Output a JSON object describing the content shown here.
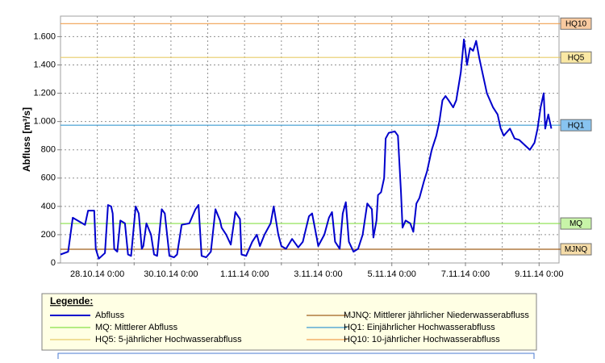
{
  "chart_data": {
    "type": "line",
    "y_label": "Abfluss [m³/s]",
    "legend_title": "Legende:",
    "xlim": [
      "2014-10-27T00:00",
      "2014-11-09T13:00"
    ],
    "xticks": [
      {
        "value": "2014-10-28T00:00",
        "label": "28.10.14 0:00"
      },
      {
        "value": "2014-10-30T00:00",
        "label": "30.10.14 0:00"
      },
      {
        "value": "2014-11-01T00:00",
        "label": "1.11.14 0:00"
      },
      {
        "value": "2014-11-03T00:00",
        "label": "3.11.14 0:00"
      },
      {
        "value": "2014-11-05T00:00",
        "label": "5.11.14 0:00"
      },
      {
        "value": "2014-11-07T00:00",
        "label": "7.11.14 0:00"
      },
      {
        "value": "2014-11-09T00:00",
        "label": "9.11.14 0:00"
      }
    ],
    "x_minor_ticks": [
      "2014-10-29T00:00",
      "2014-10-31T00:00",
      "2014-11-02T00:00",
      "2014-11-04T00:00",
      "2014-11-06T00:00",
      "2014-11-08T00:00"
    ],
    "ylim": [
      0,
      1745
    ],
    "yticks": [
      0,
      200,
      400,
      600,
      800,
      {
        "value": 1000,
        "label": "1.000"
      },
      {
        "value": 1200,
        "label": "1.200"
      },
      {
        "value": 1400,
        "label": "1.400"
      },
      {
        "value": 1600,
        "label": "1.600"
      }
    ],
    "grid": true,
    "series": [
      {
        "name": "Abfluss",
        "color": "#0000cc",
        "x": [
          "2014-10-27T00:00",
          "2014-10-27T05:00",
          "2014-10-27T08:00",
          "2014-10-27T16:00",
          "2014-10-27T18:00",
          "2014-10-27T22:00",
          "2014-10-27T23:00",
          "2014-10-28T01:00",
          "2014-10-28T05:00",
          "2014-10-28T07:00",
          "2014-10-28T09:00",
          "2014-10-28T10:00",
          "2014-10-28T11:00",
          "2014-10-28T13:00",
          "2014-10-28T15:00",
          "2014-10-28T18:00",
          "2014-10-28T20:00",
          "2014-10-28T22:00",
          "2014-10-29T01:00",
          "2014-10-29T03:00",
          "2014-10-29T05:00",
          "2014-10-29T06:00",
          "2014-10-29T08:00",
          "2014-10-29T11:00",
          "2014-10-29T13:00",
          "2014-10-29T15:00",
          "2014-10-29T18:00",
          "2014-10-29T20:00",
          "2014-10-29T23:00",
          "2014-10-30T02:00",
          "2014-10-30T04:00",
          "2014-10-30T07:00",
          "2014-10-30T12:00",
          "2014-10-30T16:00",
          "2014-10-30T18:00",
          "2014-10-30T20:00",
          "2014-10-30T23:00",
          "2014-10-31T02:00",
          "2014-10-31T05:00",
          "2014-10-31T08:00",
          "2014-10-31T09:00",
          "2014-10-31T12:00",
          "2014-10-31T15:00",
          "2014-10-31T18:00",
          "2014-10-31T21:00",
          "2014-10-31T22:00",
          "2014-11-01T01:00",
          "2014-11-01T05:00",
          "2014-11-01T08:00",
          "2014-11-01T10:00",
          "2014-11-01T13:00",
          "2014-11-01T17:00",
          "2014-11-01T19:00",
          "2014-11-01T22:00",
          "2014-11-02T00:00",
          "2014-11-02T03:00",
          "2014-11-02T07:00",
          "2014-11-02T11:00",
          "2014-11-02T14:00",
          "2014-11-02T18:00",
          "2014-11-02T20:00",
          "2014-11-02T23:00",
          "2014-11-03T00:00",
          "2014-11-03T04:00",
          "2014-11-03T07:00",
          "2014-11-03T09:00",
          "2014-11-03T11:00",
          "2014-11-03T14:00",
          "2014-11-03T16:00",
          "2014-11-03T18:00",
          "2014-11-03T20:00",
          "2014-11-03T23:00",
          "2014-11-04T02:00",
          "2014-11-04T05:00",
          "2014-11-04T08:00",
          "2014-11-04T11:00",
          "2014-11-04T12:00",
          "2014-11-04T14:00",
          "2014-11-04T15:00",
          "2014-11-04T17:00",
          "2014-11-04T19:00",
          "2014-11-04T20:00",
          "2014-11-04T22:00",
          "2014-11-05T02:00",
          "2014-11-05T04:00",
          "2014-11-05T06:00",
          "2014-11-05T07:00",
          "2014-11-05T09:00",
          "2014-11-05T12:00",
          "2014-11-05T14:00",
          "2014-11-05T16:00",
          "2014-11-05T18:00",
          "2014-11-05T21:00",
          "2014-11-05T23:00",
          "2014-11-06T02:00",
          "2014-11-06T05:00",
          "2014-11-06T07:00",
          "2014-11-06T09:00",
          "2014-11-06T11:00",
          "2014-11-06T13:00",
          "2014-11-06T16:00",
          "2014-11-06T18:00",
          "2014-11-06T21:00",
          "2014-11-06T23:00",
          "2014-11-07T00:00",
          "2014-11-07T01:00",
          "2014-11-07T03:00",
          "2014-11-07T05:00",
          "2014-11-07T07:00",
          "2014-11-07T09:00",
          "2014-11-07T11:00",
          "2014-11-07T14:00",
          "2014-11-07T18:00",
          "2014-11-07T21:00",
          "2014-11-07T23:00",
          "2014-11-08T01:00",
          "2014-11-08T05:00",
          "2014-11-08T08:00",
          "2014-11-08T11:00",
          "2014-11-08T15:00",
          "2014-11-08T18:00",
          "2014-11-08T21:00",
          "2014-11-08T23:00",
          "2014-11-09T01:00",
          "2014-11-09T03:00",
          "2014-11-09T04:00",
          "2014-11-09T06:00",
          "2014-11-09T08:00"
        ],
        "values": [
          60,
          80,
          320,
          270,
          370,
          370,
          100,
          30,
          70,
          410,
          400,
          350,
          100,
          80,
          300,
          280,
          60,
          50,
          400,
          350,
          100,
          120,
          280,
          200,
          60,
          50,
          380,
          350,
          50,
          40,
          60,
          270,
          280,
          380,
          410,
          50,
          40,
          80,
          380,
          300,
          250,
          200,
          130,
          360,
          310,
          60,
          50,
          150,
          200,
          120,
          200,
          280,
          400,
          200,
          120,
          100,
          170,
          110,
          150,
          330,
          350,
          180,
          120,
          200,
          320,
          360,
          150,
          100,
          350,
          430,
          150,
          80,
          100,
          200,
          420,
          380,
          180,
          300,
          480,
          500,
          600,
          880,
          920,
          930,
          900,
          500,
          250,
          300,
          280,
          220,
          420,
          460,
          580,
          650,
          800,
          900,
          1000,
          1150,
          1180,
          1150,
          1100,
          1150,
          1350,
          1580,
          1500,
          1400,
          1520,
          1500,
          1570,
          1450,
          1350,
          1200,
          1100,
          1050,
          950,
          900,
          950,
          880,
          870,
          830,
          800,
          850,
          950,
          1100,
          1200,
          950,
          1050,
          950
        ]
      }
    ],
    "reference_lines": [
      {
        "tag": "MJNQ",
        "name": "MJNQ: Mittlerer jährlicher Niederwasserabfluss",
        "value": 97,
        "color": "#a0601c",
        "tag_color": "#f5dca8"
      },
      {
        "tag": "MQ",
        "name": "MQ: Mittlerer Abfluss",
        "value": 279,
        "color": "#88e048",
        "tag_color": "#c8f4a8"
      },
      {
        "tag": "HQ1",
        "name": "HQ1: Einjährlicher Hochwasserabfluss",
        "value": 974,
        "color": "#3a9ad0",
        "tag_color": "#88c4f0"
      },
      {
        "tag": "HQ5",
        "name": "HQ5: 5-jährlicher Hochwasserabfluss",
        "value": 1453,
        "color": "#e8cc68",
        "tag_color": "#fae8a4"
      },
      {
        "tag": "HQ10",
        "name": "HQ10: 10-jährlicher Hochwasserabfluss",
        "value": 1692,
        "color": "#f0a050",
        "tag_color": "#f8caa0"
      }
    ]
  }
}
